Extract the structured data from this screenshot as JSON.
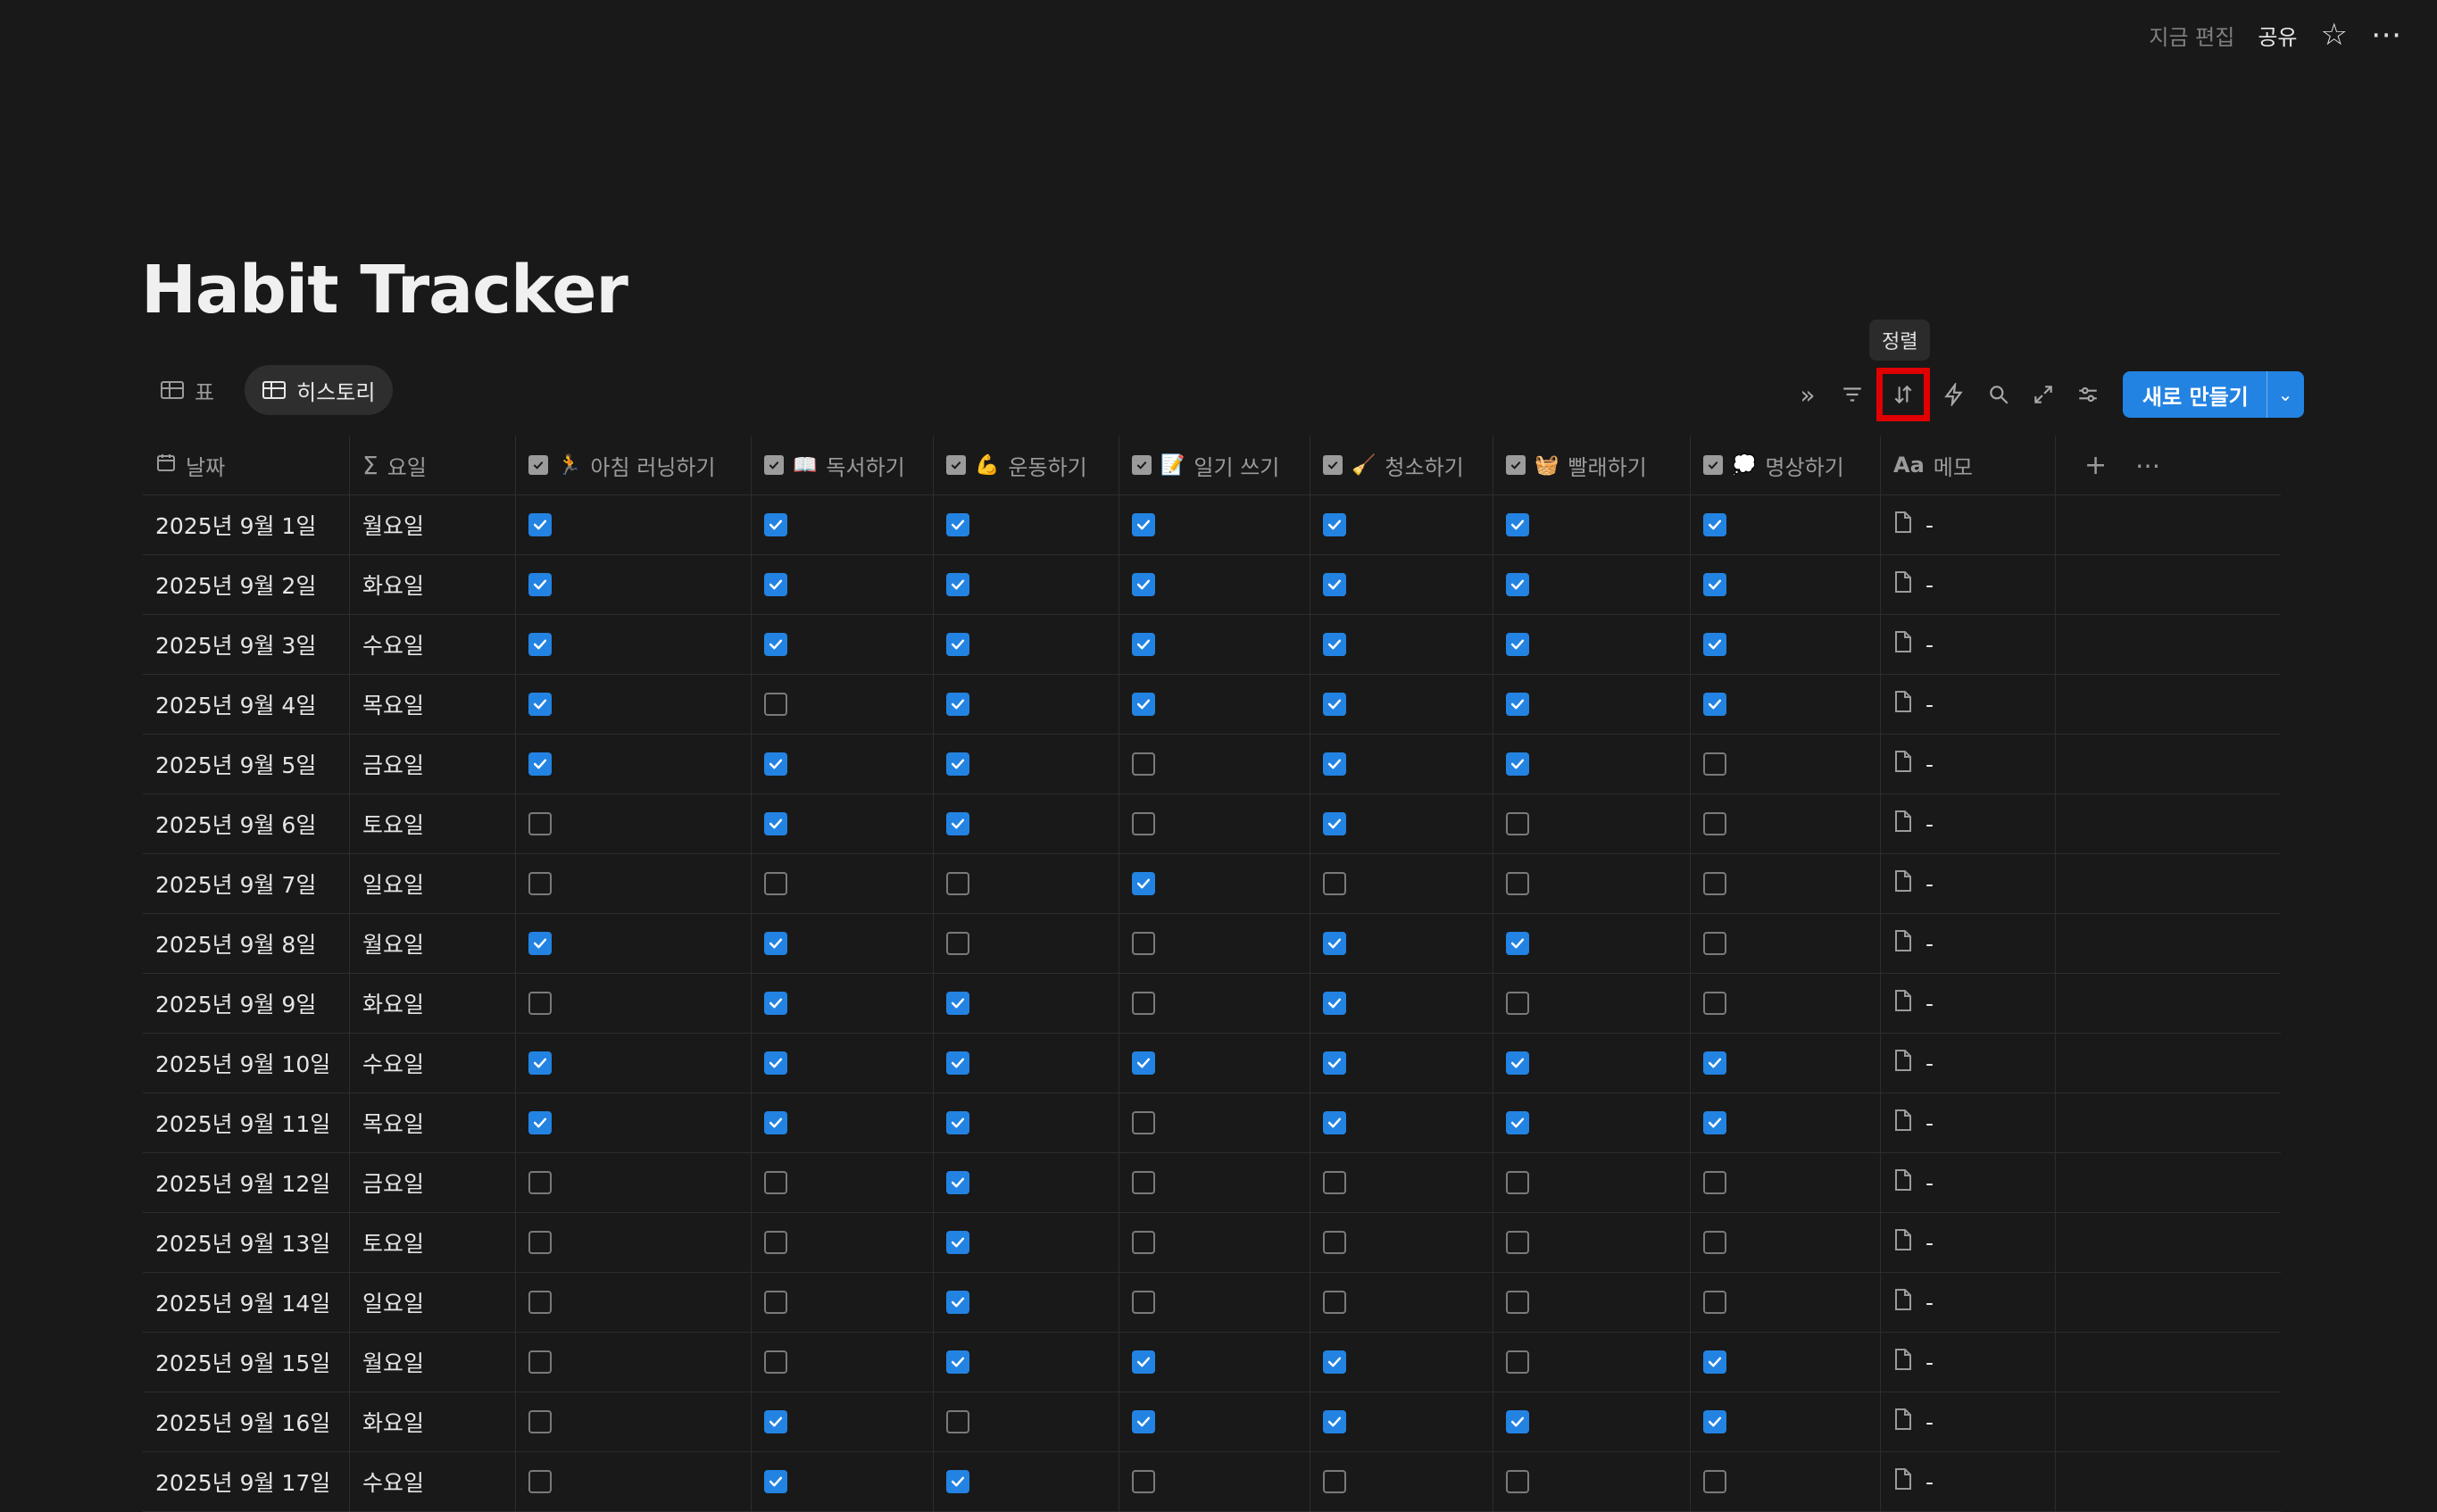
{
  "topbar": {
    "edited": "지금 편집",
    "share": "공유",
    "star_icon": "star-icon",
    "more_icon": "more-icon"
  },
  "page": {
    "title": "Habit Tracker"
  },
  "views": [
    {
      "label": "표",
      "icon": "table-icon"
    },
    {
      "label": "히스토리",
      "icon": "table-icon"
    }
  ],
  "toolbar": {
    "tooltip": "정렬",
    "new_label": "새로 만들기",
    "colors": {
      "accent": "#2383e2",
      "highlight": "#e00000"
    }
  },
  "columns": [
    {
      "label": "날짜",
      "icon": "calendar-icon"
    },
    {
      "label": "요일",
      "icon": "sigma-icon"
    },
    {
      "label": "아침 러닝하기",
      "emoji": "🏃"
    },
    {
      "label": "독서하기",
      "emoji": "📖"
    },
    {
      "label": "운동하기",
      "emoji": "💪"
    },
    {
      "label": "일기 쓰기",
      "emoji": "📝"
    },
    {
      "label": "청소하기",
      "emoji": "🧹"
    },
    {
      "label": "빨래하기",
      "emoji": "🧺"
    },
    {
      "label": "명상하기",
      "emoji": "💭"
    },
    {
      "label": "메모",
      "icon": "text-property-icon",
      "prefix": "Aa"
    }
  ],
  "rows": [
    {
      "date": "2025년 9월 1일",
      "day": "월요일",
      "checks": [
        1,
        1,
        1,
        1,
        1,
        1,
        1
      ],
      "memo": "-"
    },
    {
      "date": "2025년 9월 2일",
      "day": "화요일",
      "checks": [
        1,
        1,
        1,
        1,
        1,
        1,
        1
      ],
      "memo": "-"
    },
    {
      "date": "2025년 9월 3일",
      "day": "수요일",
      "checks": [
        1,
        1,
        1,
        1,
        1,
        1,
        1
      ],
      "memo": "-"
    },
    {
      "date": "2025년 9월 4일",
      "day": "목요일",
      "checks": [
        1,
        0,
        1,
        1,
        1,
        1,
        1
      ],
      "memo": "-"
    },
    {
      "date": "2025년 9월 5일",
      "day": "금요일",
      "checks": [
        1,
        1,
        1,
        0,
        1,
        1,
        0
      ],
      "memo": "-"
    },
    {
      "date": "2025년 9월 6일",
      "day": "토요일",
      "checks": [
        0,
        1,
        1,
        0,
        1,
        0,
        0
      ],
      "memo": "-"
    },
    {
      "date": "2025년 9월 7일",
      "day": "일요일",
      "checks": [
        0,
        0,
        0,
        1,
        0,
        0,
        0
      ],
      "memo": "-"
    },
    {
      "date": "2025년 9월 8일",
      "day": "월요일",
      "checks": [
        1,
        1,
        0,
        0,
        1,
        1,
        0
      ],
      "memo": "-"
    },
    {
      "date": "2025년 9월 9일",
      "day": "화요일",
      "checks": [
        0,
        1,
        1,
        0,
        1,
        0,
        0
      ],
      "memo": "-"
    },
    {
      "date": "2025년 9월 10일",
      "day": "수요일",
      "checks": [
        1,
        1,
        1,
        1,
        1,
        1,
        1
      ],
      "memo": "-"
    },
    {
      "date": "2025년 9월 11일",
      "day": "목요일",
      "checks": [
        1,
        1,
        1,
        0,
        1,
        1,
        1
      ],
      "memo": "-"
    },
    {
      "date": "2025년 9월 12일",
      "day": "금요일",
      "checks": [
        0,
        0,
        1,
        0,
        0,
        0,
        0
      ],
      "memo": "-"
    },
    {
      "date": "2025년 9월 13일",
      "day": "토요일",
      "checks": [
        0,
        0,
        1,
        0,
        0,
        0,
        0
      ],
      "memo": "-"
    },
    {
      "date": "2025년 9월 14일",
      "day": "일요일",
      "checks": [
        0,
        0,
        1,
        0,
        0,
        0,
        0
      ],
      "memo": "-"
    },
    {
      "date": "2025년 9월 15일",
      "day": "월요일",
      "checks": [
        0,
        0,
        1,
        1,
        1,
        0,
        1
      ],
      "memo": "-"
    },
    {
      "date": "2025년 9월 16일",
      "day": "화요일",
      "checks": [
        0,
        1,
        0,
        1,
        1,
        1,
        1
      ],
      "memo": "-"
    },
    {
      "date": "2025년 9월 17일",
      "day": "수요일",
      "checks": [
        0,
        1,
        1,
        0,
        0,
        0,
        0
      ],
      "memo": "-"
    }
  ]
}
